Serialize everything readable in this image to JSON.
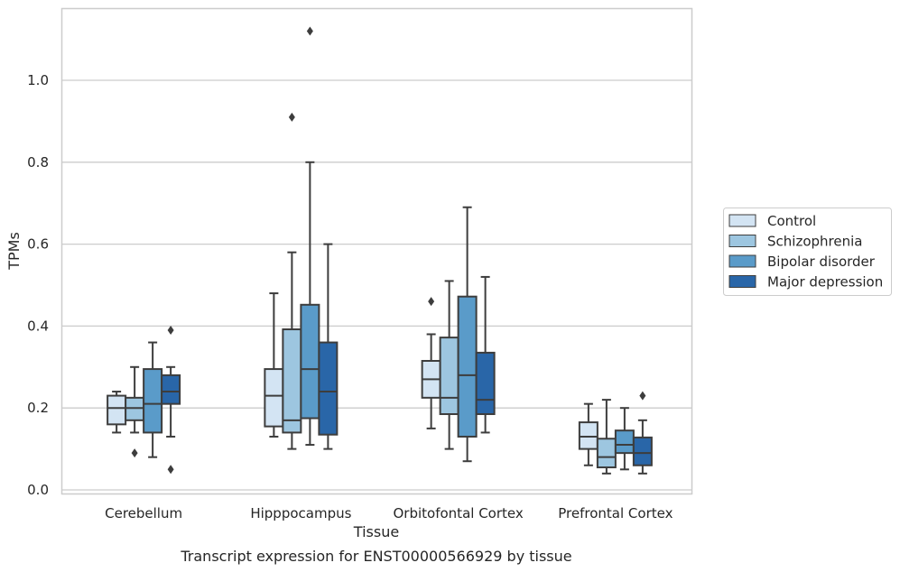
{
  "chart_data": {
    "type": "box",
    "title": "",
    "caption": "Transcript expression for ENST00000566929 by tissue",
    "xlabel": "Tissue",
    "ylabel": "TPMs",
    "ylim": [
      -0.01,
      1.18
    ],
    "yticks": [
      "0.0",
      "0.2",
      "0.4",
      "0.6",
      "0.8",
      "1.0"
    ],
    "grid": "horizontal",
    "legend_position": "right",
    "categories": [
      "Cerebellum",
      "Hipppocampus",
      "Orbitofontal Cortex",
      "Prefrontal Cortex"
    ],
    "series": [
      {
        "name": "Control",
        "color": "#d3e4f3",
        "boxes": [
          {
            "whislo": 0.14,
            "q1": 0.16,
            "med": 0.2,
            "q3": 0.23,
            "whishi": 0.24,
            "fliers": []
          },
          {
            "whislo": 0.13,
            "q1": 0.155,
            "med": 0.23,
            "q3": 0.295,
            "whishi": 0.48,
            "fliers": []
          },
          {
            "whislo": 0.15,
            "q1": 0.225,
            "med": 0.27,
            "q3": 0.315,
            "whishi": 0.38,
            "fliers": [
              0.46
            ]
          },
          {
            "whislo": 0.06,
            "q1": 0.1,
            "med": 0.13,
            "q3": 0.165,
            "whishi": 0.21,
            "fliers": []
          }
        ]
      },
      {
        "name": "Schizophrenia",
        "color": "#9dc6e0",
        "boxes": [
          {
            "whislo": 0.14,
            "q1": 0.17,
            "med": 0.2,
            "q3": 0.225,
            "whishi": 0.3,
            "fliers": [
              0.09
            ]
          },
          {
            "whislo": 0.1,
            "q1": 0.14,
            "med": 0.17,
            "q3": 0.392,
            "whishi": 0.58,
            "fliers": [
              0.91
            ]
          },
          {
            "whislo": 0.1,
            "q1": 0.185,
            "med": 0.225,
            "q3": 0.372,
            "whishi": 0.51,
            "fliers": []
          },
          {
            "whislo": 0.04,
            "q1": 0.055,
            "med": 0.08,
            "q3": 0.125,
            "whishi": 0.22,
            "fliers": []
          }
        ]
      },
      {
        "name": "Bipolar disorder",
        "color": "#5a9bc9",
        "boxes": [
          {
            "whislo": 0.08,
            "q1": 0.14,
            "med": 0.21,
            "q3": 0.295,
            "whishi": 0.36,
            "fliers": []
          },
          {
            "whislo": 0.11,
            "q1": 0.175,
            "med": 0.295,
            "q3": 0.452,
            "whishi": 0.8,
            "fliers": [
              1.12
            ]
          },
          {
            "whislo": 0.07,
            "q1": 0.13,
            "med": 0.28,
            "q3": 0.472,
            "whishi": 0.69,
            "fliers": []
          },
          {
            "whislo": 0.05,
            "q1": 0.09,
            "med": 0.11,
            "q3": 0.145,
            "whishi": 0.2,
            "fliers": []
          }
        ]
      },
      {
        "name": "Major depression",
        "color": "#2966a8",
        "boxes": [
          {
            "whislo": 0.13,
            "q1": 0.21,
            "med": 0.24,
            "q3": 0.28,
            "whishi": 0.3,
            "fliers": [
              0.39,
              0.05
            ]
          },
          {
            "whislo": 0.1,
            "q1": 0.135,
            "med": 0.24,
            "q3": 0.36,
            "whishi": 0.6,
            "fliers": []
          },
          {
            "whislo": 0.14,
            "q1": 0.185,
            "med": 0.22,
            "q3": 0.335,
            "whishi": 0.52,
            "fliers": []
          },
          {
            "whislo": 0.04,
            "q1": 0.06,
            "med": 0.09,
            "q3": 0.128,
            "whishi": 0.17,
            "fliers": [
              0.23
            ]
          }
        ]
      }
    ]
  }
}
